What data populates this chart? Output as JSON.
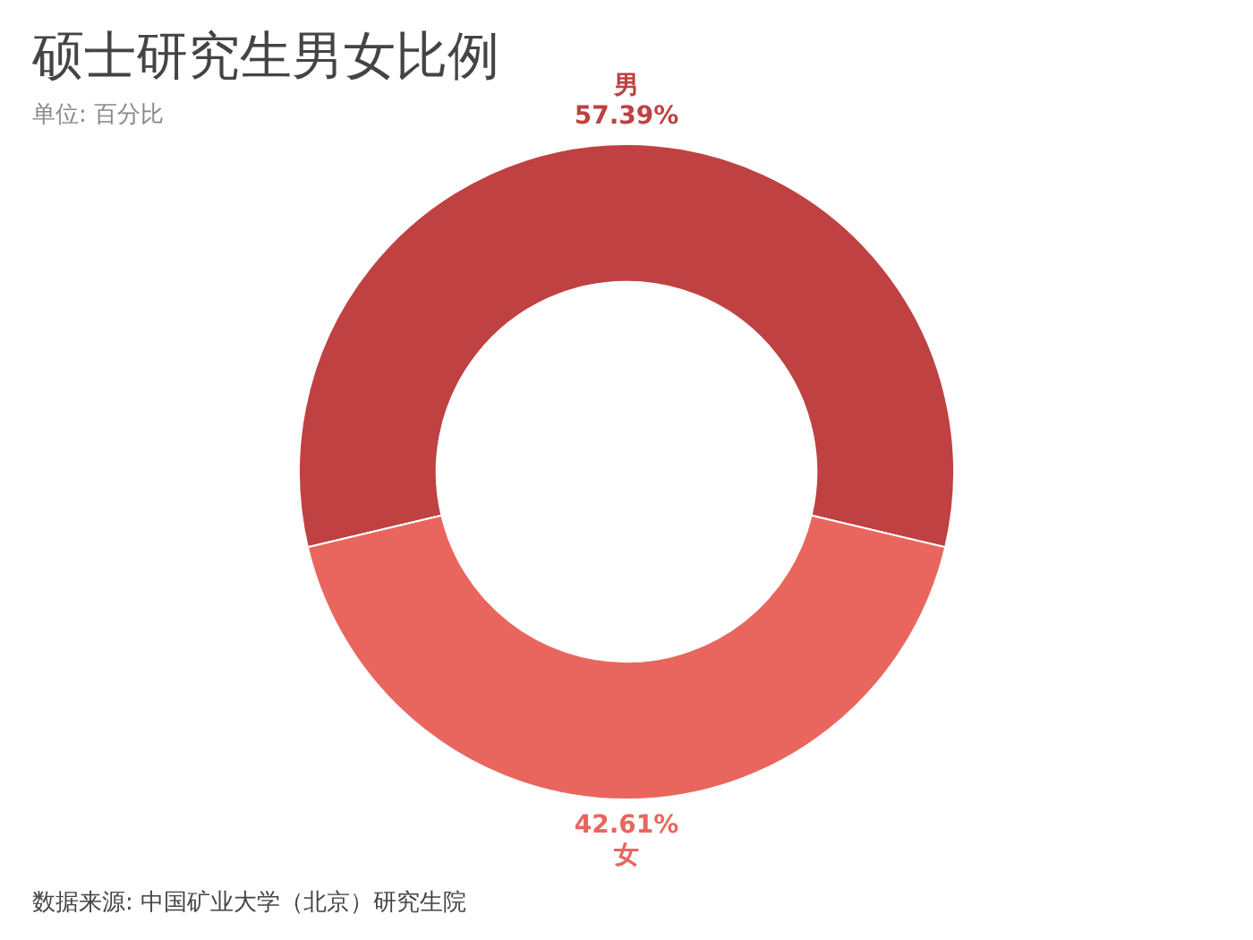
{
  "chart_data": {
    "type": "donut",
    "title": "硕士研究生男女比例",
    "subtitle": "单位: 百分比",
    "categories": [
      "男",
      "女"
    ],
    "values": [
      57.39,
      42.61
    ],
    "colors": [
      "#bf4141",
      "#e8665e"
    ],
    "value_labels": [
      "57.39%",
      "42.61%"
    ],
    "annotations": [
      "数据来源: 中国矿业大学（北京）研究生院"
    ],
    "legend": false
  }
}
